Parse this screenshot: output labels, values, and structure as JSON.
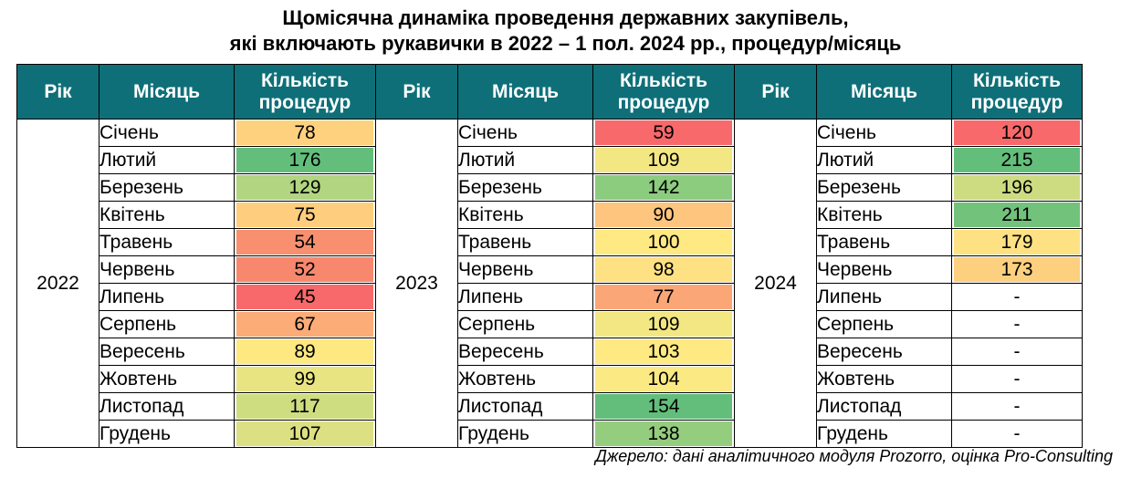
{
  "title_line1": "Щомісячна динаміка проведення державних закупівель,",
  "title_line2": "які включають рукавички в 2022 – 1 пол. 2024 рр., процедур/місяць",
  "headers": {
    "year": "Рік",
    "month": "Місяць",
    "count_line1": "Кількість",
    "count_line2": "процедур"
  },
  "months": [
    "Січень",
    "Лютий",
    "Березень",
    "Квітень",
    "Травень",
    "Червень",
    "Липень",
    "Серпень",
    "Вересень",
    "Жовтень",
    "Листопад",
    "Грудень"
  ],
  "blocks": [
    {
      "year": "2022",
      "values": [
        "78",
        "176",
        "129",
        "75",
        "54",
        "52",
        "45",
        "67",
        "89",
        "99",
        "117",
        "107"
      ],
      "colors": [
        "#fdd17e",
        "#63be7b",
        "#b1d580",
        "#fece7e",
        "#f8906f",
        "#f8886d",
        "#f8696b",
        "#fbac77",
        "#fde882",
        "#e9e482",
        "#cfdd81",
        "#dde082"
      ]
    },
    {
      "year": "2023",
      "values": [
        "59",
        "109",
        "142",
        "90",
        "100",
        "98",
        "77",
        "109",
        "103",
        "104",
        "154",
        "138"
      ],
      "colors": [
        "#f8696b",
        "#f3e783",
        "#8ccc7e",
        "#fdc57d",
        "#fee983",
        "#fee182",
        "#fba677",
        "#f3e783",
        "#fee983",
        "#fbe983",
        "#63be7b",
        "#95cd7e"
      ]
    },
    {
      "year": "2024",
      "values": [
        "120",
        "215",
        "196",
        "211",
        "179",
        "173",
        "-",
        "-",
        "-",
        "-",
        "-",
        "-"
      ],
      "colors": [
        "#f8696b",
        "#63be7b",
        "#cddc81",
        "#73c27c",
        "#fee182",
        "#fdd07f",
        "",
        "",
        "",
        "",
        "",
        ""
      ]
    }
  ],
  "source": "Джерело: дані аналітичного модуля Prozorro, оцінка Pro-Consulting"
}
